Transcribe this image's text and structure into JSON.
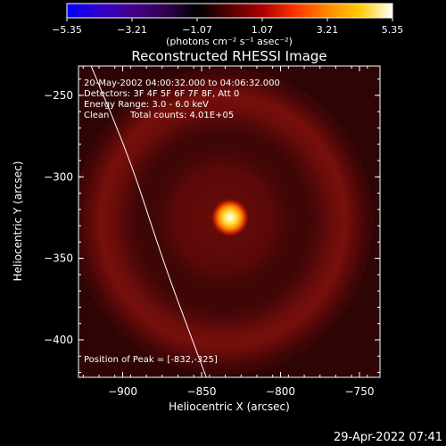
{
  "chart_data": {
    "type": "heatmap",
    "title": "Reconstructed RHESSI Image",
    "xlabel": "Heliocentric X (arcsec)",
    "ylabel": "Heliocentric Y (arcsec)",
    "xlim": [
      -928,
      -737
    ],
    "ylim": [
      -423,
      -232
    ],
    "xticks": [
      {
        "value": -900,
        "label": "−900"
      },
      {
        "value": -850,
        "label": "−850"
      },
      {
        "value": -800,
        "label": "−800"
      },
      {
        "value": -750,
        "label": "−750"
      }
    ],
    "yticks": [
      {
        "value": -250,
        "label": "−250"
      },
      {
        "value": -300,
        "label": "−300"
      },
      {
        "value": -350,
        "label": "−350"
      },
      {
        "value": -400,
        "label": "−400"
      }
    ],
    "colorbar": {
      "range": [
        -5.35,
        5.35
      ],
      "ticks": [
        {
          "value": -5.35,
          "label": "−5.35"
        },
        {
          "value": -3.21,
          "label": "−3.21"
        },
        {
          "value": -1.07,
          "label": "−1.07"
        },
        {
          "value": 1.07,
          "label": "1.07"
        },
        {
          "value": 3.21,
          "label": "3.21"
        },
        {
          "value": 5.35,
          "label": "5.35"
        }
      ],
      "unit_label": "(photons cm⁻² s⁻¹ asec⁻²)"
    },
    "annotations": [
      "20-May-2002 04:00:32.000 to 04:06:32.000",
      "Detectors: 3F 4F 5F 6F 7F 8F, Att 0",
      "Energy Range: 3.0 - 6.0 keV",
      "Clean",
      "Total counts: 4.01E+05"
    ],
    "peak": {
      "x": -832,
      "y": -325,
      "label": "Position of Peak = [-832,-325]"
    },
    "limb": [
      [
        -920,
        -232
      ],
      [
        -895,
        -290
      ],
      [
        -875,
        -350
      ],
      [
        -856,
        -400
      ],
      [
        -847,
        -423
      ]
    ],
    "background_fill": "#2a0303",
    "colormap": [
      "#0000ff",
      "#3300cc",
      "#440088",
      "#330055",
      "#000000",
      "#550000",
      "#aa0000",
      "#ff3300",
      "#ff8800",
      "#ffcc00",
      "#ffffff"
    ],
    "image_description_levels": {
      "background": 0.9,
      "ring": 1.4,
      "gap": 0.6,
      "peak": 5.35
    }
  },
  "footer": {
    "timestamp": "29-Apr-2022 07:41"
  }
}
